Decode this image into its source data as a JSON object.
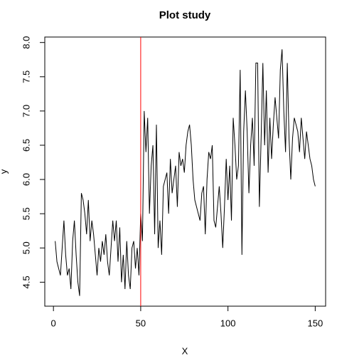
{
  "chart_data": {
    "type": "line",
    "title": "Plot study",
    "x_label": "X",
    "y_label": "y",
    "x": [
      1,
      2,
      3,
      4,
      5,
      6,
      7,
      8,
      9,
      10,
      11,
      12,
      13,
      14,
      15,
      16,
      17,
      18,
      19,
      20,
      21,
      22,
      23,
      24,
      25,
      26,
      27,
      28,
      29,
      30,
      31,
      32,
      33,
      34,
      35,
      36,
      37,
      38,
      39,
      40,
      41,
      42,
      43,
      44,
      45,
      46,
      47,
      48,
      49,
      50,
      51,
      52,
      53,
      54,
      55,
      56,
      57,
      58,
      59,
      60,
      61,
      62,
      63,
      64,
      65,
      66,
      67,
      68,
      69,
      70,
      71,
      72,
      73,
      74,
      75,
      76,
      77,
      78,
      79,
      80,
      81,
      82,
      83,
      84,
      85,
      86,
      87,
      88,
      89,
      90,
      91,
      92,
      93,
      94,
      95,
      96,
      97,
      98,
      99,
      100,
      101,
      102,
      103,
      104,
      105,
      106,
      107,
      108,
      109,
      110,
      111,
      112,
      113,
      114,
      115,
      116,
      117,
      118,
      119,
      120,
      121,
      122,
      123,
      124,
      125,
      126,
      127,
      128,
      129,
      130,
      131,
      132,
      133,
      134,
      135,
      136,
      137,
      138,
      139,
      140,
      141,
      142,
      143,
      144,
      145,
      146,
      147,
      148,
      149,
      150
    ],
    "series": [
      {
        "color": "#000000",
        "values": [
          5.1,
          4.8,
          4.7,
          4.6,
          5.0,
          5.4,
          4.9,
          4.6,
          4.7,
          4.4,
          5.1,
          5.4,
          4.9,
          4.5,
          4.3,
          5.8,
          5.7,
          5.5,
          5.2,
          5.7,
          5.1,
          5.4,
          5.2,
          4.9,
          4.6,
          5.0,
          4.8,
          5.1,
          4.9,
          5.2,
          4.8,
          4.6,
          5.0,
          5.4,
          5.1,
          5.4,
          4.8,
          5.3,
          4.5,
          4.9,
          4.4,
          5.1,
          4.6,
          4.4,
          5.0,
          5.1,
          4.7,
          5.0,
          4.6,
          5.5,
          5.1,
          7.0,
          6.4,
          6.9,
          5.5,
          6.2,
          6.5,
          5.2,
          6.8,
          5.0,
          5.4,
          4.9,
          5.9,
          6.0,
          6.1,
          5.5,
          6.3,
          5.8,
          6.0,
          6.2,
          5.6,
          6.4,
          6.2,
          6.3,
          6.1,
          6.5,
          6.7,
          6.8,
          6.5,
          6.0,
          5.7,
          5.6,
          5.5,
          5.4,
          5.8,
          5.9,
          5.2,
          6.0,
          6.4,
          6.3,
          6.5,
          5.4,
          5.3,
          5.6,
          5.9,
          5.5,
          5.0,
          5.6,
          6.3,
          5.7,
          6.2,
          5.4,
          6.9,
          6.5,
          6.0,
          6.2,
          7.6,
          4.9,
          6.7,
          7.3,
          6.7,
          5.8,
          6.5,
          6.9,
          6.2,
          7.7,
          7.7,
          5.6,
          6.6,
          7.7,
          6.5,
          7.3,
          6.1,
          6.9,
          6.3,
          6.8,
          7.2,
          6.9,
          6.6,
          7.6,
          7.9,
          7.0,
          6.4,
          7.7,
          6.6,
          6.0,
          6.6,
          6.9,
          6.8,
          6.7,
          6.4,
          6.9,
          6.6,
          6.3,
          6.7,
          6.5,
          6.3,
          6.2,
          6.0,
          5.9
        ]
      }
    ],
    "vlines": [
      {
        "x": 50,
        "color": "#ff0000"
      }
    ],
    "xlim": [
      -4.96,
      155.96
    ],
    "xticks": [
      0,
      50,
      100,
      150
    ],
    "ylim": [
      4.15,
      8.08
    ],
    "yticks": [
      4.5,
      5.0,
      5.5,
      6.0,
      6.5,
      7.0,
      7.5,
      8.0
    ],
    "ytick_labels": [
      "4.5",
      "5.0",
      "5.5",
      "6.0",
      "6.5",
      "7.0",
      "7.5",
      "8.0"
    ]
  }
}
